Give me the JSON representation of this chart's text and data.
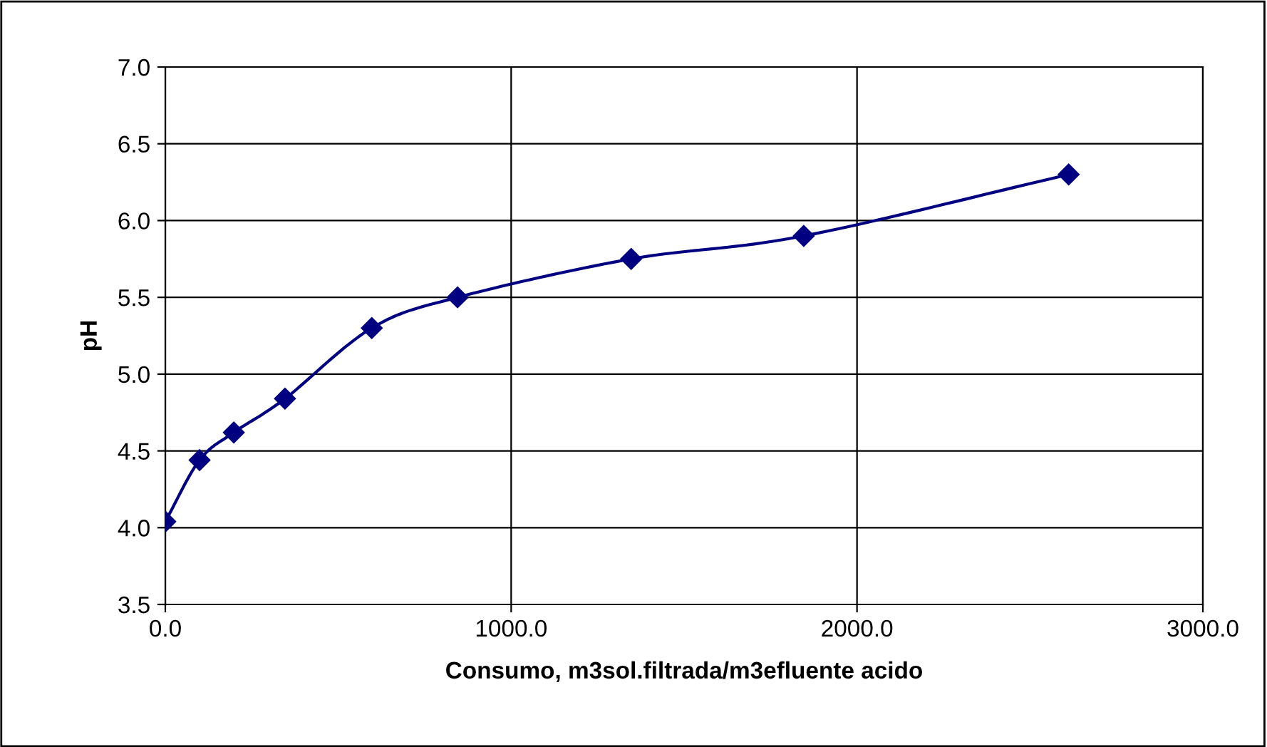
{
  "chart_data": {
    "type": "line",
    "xlabel": "Consumo, m3sol.filtrada/m3efluente acido",
    "ylabel": "pH",
    "x": [
      0,
      99,
      198,
      346,
      597,
      845,
      1347,
      1846,
      2612
    ],
    "series": [
      {
        "color": "#000080",
        "values": [
          4.04,
          4.44,
          4.62,
          4.84,
          5.3,
          5.5,
          5.75,
          5.9,
          6.3
        ]
      }
    ],
    "xlim": [
      0,
      3000
    ],
    "xticks": [
      {
        "value": 0,
        "label": "0.0"
      },
      {
        "value": 1000,
        "label": "1000.0"
      },
      {
        "value": 2000,
        "label": "2000.0"
      },
      {
        "value": 3000,
        "label": "3000.0"
      }
    ],
    "ylim": [
      3.5,
      7.0
    ],
    "yticks": [
      {
        "value": 3.5,
        "label": "3.5"
      },
      {
        "value": 4.0,
        "label": "4.0"
      },
      {
        "value": 4.5,
        "label": "4.5"
      },
      {
        "value": 5.0,
        "label": "5.0"
      },
      {
        "value": 5.5,
        "label": "5.5"
      },
      {
        "value": 6.0,
        "label": "6.0"
      },
      {
        "value": 6.5,
        "label": "6.5"
      },
      {
        "value": 7.0,
        "label": "7.0"
      }
    ],
    "grid": true,
    "marker": "diamond",
    "line_style": "solid"
  }
}
